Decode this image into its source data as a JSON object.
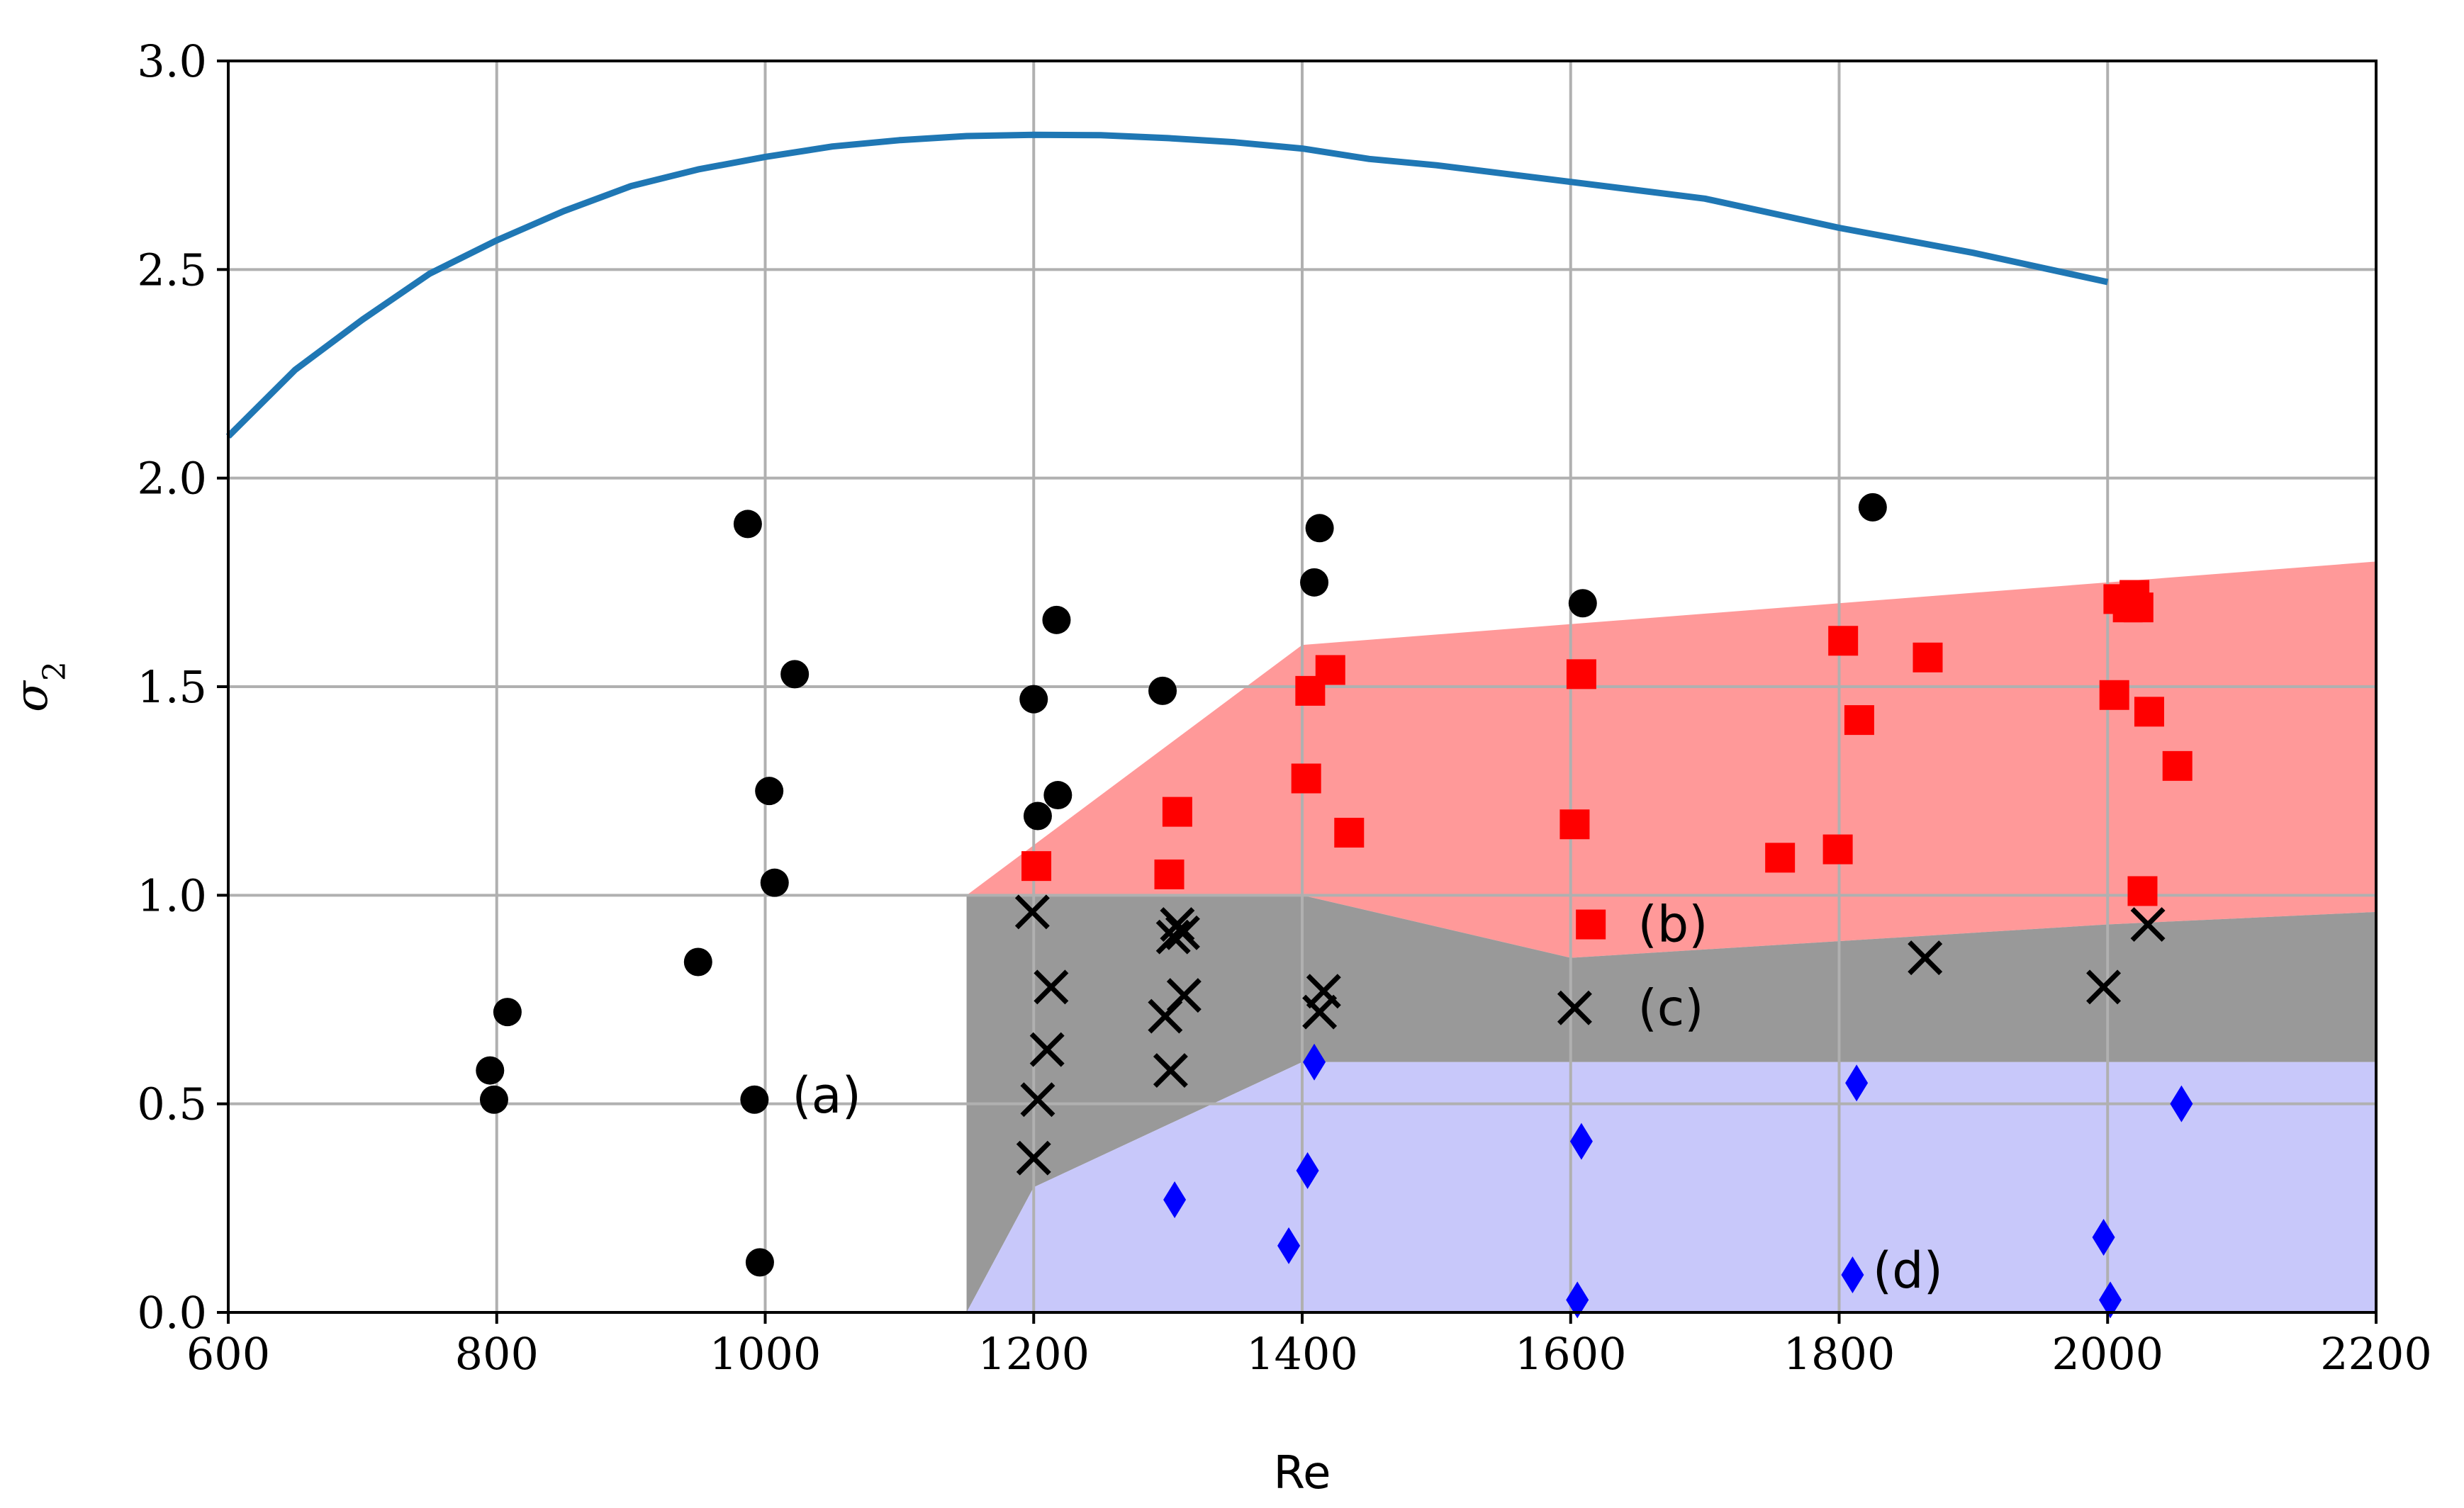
{
  "chart_data": {
    "type": "scatter",
    "title": "",
    "xlabel": "Re",
    "ylabel": "σ",
    "ylabel_subscript": "2",
    "xlim": [
      600,
      2200
    ],
    "ylim": [
      0,
      3
    ],
    "grid": true,
    "x_ticks": [
      "600",
      "800",
      "1000",
      "1200",
      "1400",
      "1600",
      "1800",
      "2000",
      "2200"
    ],
    "y_ticks": [
      "0.0",
      "0.5",
      "1.0",
      "1.5",
      "2.0",
      "2.5",
      "3.0"
    ],
    "x_tick_values": [
      600,
      800,
      1000,
      1200,
      1400,
      1600,
      1800,
      2000,
      2200
    ],
    "y_tick_values": [
      0,
      0.5,
      1.0,
      1.5,
      2.0,
      2.5,
      3.0
    ],
    "regions": [
      {
        "name": "b",
        "color": "#ff9999",
        "polygon": [
          [
            1150,
            1.0
          ],
          [
            1400,
            1.6
          ],
          [
            2200,
            1.8
          ],
          [
            2200,
            0.96
          ],
          [
            2000,
            0.93
          ],
          [
            1600,
            0.85
          ],
          [
            1400,
            1.0
          ]
        ]
      },
      {
        "name": "c",
        "color": "#999999",
        "polygon": [
          [
            1150,
            1.0
          ],
          [
            1400,
            1.0
          ],
          [
            1600,
            0.85
          ],
          [
            2000,
            0.93
          ],
          [
            2200,
            0.96
          ],
          [
            2200,
            0.6
          ],
          [
            1400,
            0.6
          ],
          [
            1200,
            0.3
          ],
          [
            1150,
            0.0
          ]
        ]
      },
      {
        "name": "d",
        "color": "#c8c8fa",
        "polygon": [
          [
            1150,
            0.0
          ],
          [
            1200,
            0.3
          ],
          [
            1400,
            0.6
          ],
          [
            2200,
            0.6
          ],
          [
            2200,
            0.0
          ]
        ]
      }
    ],
    "line_series": {
      "name": "upper curve",
      "color": "#1f77b4",
      "x": [
        600,
        650,
        700,
        750,
        800,
        850,
        900,
        950,
        1000,
        1050,
        1100,
        1150,
        1200,
        1250,
        1300,
        1350,
        1400,
        1450,
        1500,
        1600,
        1700,
        1800,
        1900,
        2000
      ],
      "y": [
        2.1,
        2.26,
        2.38,
        2.49,
        2.57,
        2.64,
        2.7,
        2.74,
        2.77,
        2.795,
        2.81,
        2.82,
        2.823,
        2.822,
        2.815,
        2.805,
        2.79,
        2.765,
        2.75,
        2.71,
        2.67,
        2.6,
        2.54,
        2.47
      ]
    },
    "series": [
      {
        "name": "circles",
        "marker": "circle",
        "color": "#000000",
        "points": [
          [
            795,
            0.58
          ],
          [
            798,
            0.51
          ],
          [
            808,
            0.72
          ],
          [
            950,
            0.84
          ],
          [
            987,
            1.89
          ],
          [
            992,
            0.51
          ],
          [
            996,
            0.12
          ],
          [
            1003,
            1.25
          ],
          [
            1007,
            1.03
          ],
          [
            1022,
            1.53
          ],
          [
            1200,
            1.47
          ],
          [
            1203,
            1.19
          ],
          [
            1217,
            1.66
          ],
          [
            1218,
            1.24
          ],
          [
            1296,
            1.49
          ],
          [
            1409,
            1.75
          ],
          [
            1413,
            1.88
          ],
          [
            1609,
            1.7
          ],
          [
            1825,
            1.93
          ]
        ]
      },
      {
        "name": "squares",
        "marker": "square",
        "color": "#ff0000",
        "points": [
          [
            1202,
            1.07
          ],
          [
            1301,
            1.05
          ],
          [
            1307,
            1.2
          ],
          [
            1403,
            1.28
          ],
          [
            1406,
            1.49
          ],
          [
            1421,
            1.54
          ],
          [
            1435,
            1.15
          ],
          [
            1603,
            1.17
          ],
          [
            1608,
            1.53
          ],
          [
            1615,
            0.93
          ],
          [
            1756,
            1.09
          ],
          [
            1799,
            1.11
          ],
          [
            1803,
            1.61
          ],
          [
            1815,
            1.42
          ],
          [
            1866,
            1.57
          ],
          [
            2005,
            1.48
          ],
          [
            2008,
            1.71
          ],
          [
            2015,
            1.69
          ],
          [
            2020,
            1.72
          ],
          [
            2023,
            1.69
          ],
          [
            2026,
            1.01
          ],
          [
            2031,
            1.44
          ],
          [
            2052,
            1.31
          ]
        ]
      },
      {
        "name": "crosses",
        "marker": "x",
        "color": "#000000",
        "points": [
          [
            1199,
            0.96
          ],
          [
            1200,
            0.37
          ],
          [
            1203,
            0.51
          ],
          [
            1210,
            0.63
          ],
          [
            1213,
            0.78
          ],
          [
            1298,
            0.71
          ],
          [
            1302,
            0.58
          ],
          [
            1304,
            0.9
          ],
          [
            1307,
            0.93
          ],
          [
            1311,
            0.91
          ],
          [
            1312,
            0.76
          ],
          [
            1413,
            0.72
          ],
          [
            1416,
            0.77
          ],
          [
            1603,
            0.73
          ],
          [
            1864,
            0.85
          ],
          [
            1997,
            0.78
          ],
          [
            2030,
            0.93
          ]
        ]
      },
      {
        "name": "diamonds",
        "marker": "diamond",
        "color": "#0000ff",
        "points": [
          [
            1305,
            0.27
          ],
          [
            1390,
            0.16
          ],
          [
            1404,
            0.34
          ],
          [
            1409,
            0.6
          ],
          [
            1608,
            0.41
          ],
          [
            1605,
            0.03
          ],
          [
            1810,
            0.09
          ],
          [
            1813,
            0.55
          ],
          [
            1997,
            0.18
          ],
          [
            2002,
            0.03
          ],
          [
            2055,
            0.5
          ]
        ]
      }
    ],
    "annotations": [
      {
        "text": "(a)",
        "x": 1020,
        "y": 0.52
      },
      {
        "text": "(b)",
        "x": 1650,
        "y": 0.93
      },
      {
        "text": "(c)",
        "x": 1650,
        "y": 0.73
      },
      {
        "text": "(d)",
        "x": 1825,
        "y": 0.1
      }
    ]
  }
}
